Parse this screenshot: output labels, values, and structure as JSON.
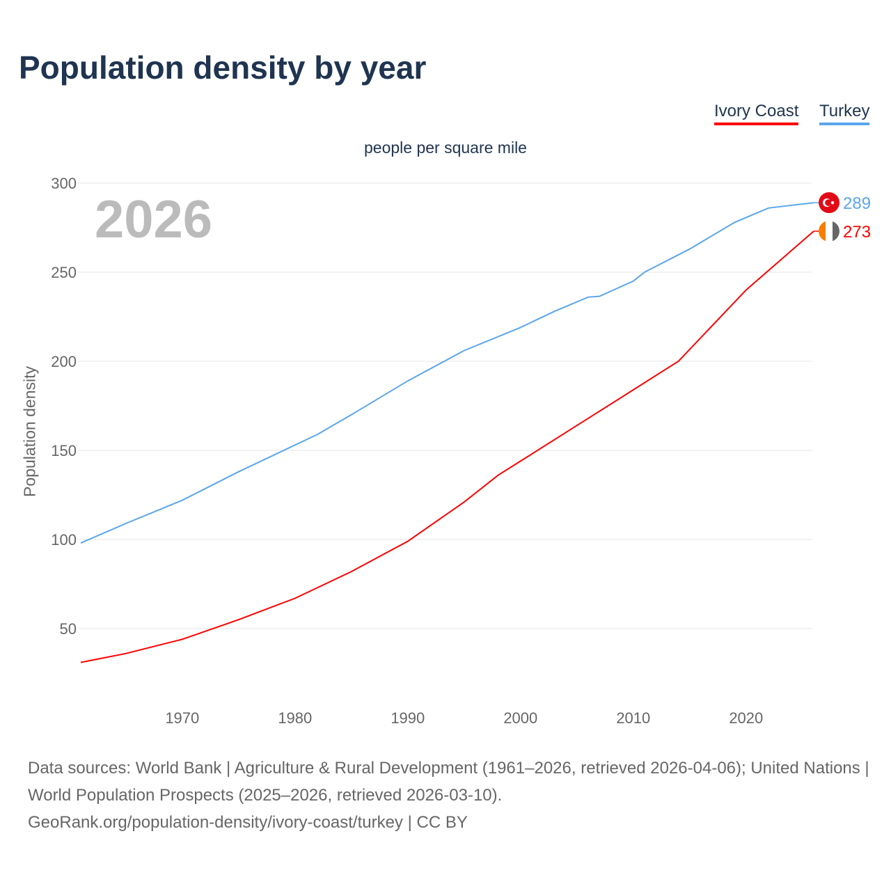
{
  "title": "Population density by year",
  "legend": [
    {
      "label": "Ivory Coast",
      "color": "#ff0000"
    },
    {
      "label": "Turkey",
      "color": "#5aa6ec"
    }
  ],
  "current_year": "2026",
  "source_lines": [
    "Data sources: World Bank | Agriculture & Rural Development (1961–2026, retrieved 2026-04-06); United Nations | World Population Prospects (2025–2026, retrieved 2026-03-10).",
    "GeoRank.org/population-density/ivory-coast/turkey | CC BY"
  ],
  "chart_data": {
    "type": "line",
    "title": "Population density by year",
    "subtitle": "people per square mile",
    "ylabel": "Population density",
    "xlabel": "",
    "xlim": [
      1961,
      2026
    ],
    "ylim": [
      30,
      300
    ],
    "yticks": [
      50,
      100,
      150,
      200,
      250,
      300
    ],
    "xticks": [
      1970,
      1980,
      1990,
      2000,
      2010,
      2020
    ],
    "grid": true,
    "legend_position": "top-right",
    "series": [
      {
        "name": "Turkey",
        "color": "#5aa6ec",
        "end_label": "289",
        "x": [
          1961,
          1965,
          1970,
          1975,
          1980,
          1982,
          1985,
          1990,
          1995,
          2000,
          2003,
          2006,
          2007,
          2010,
          2011,
          2015,
          2019,
          2022,
          2026
        ],
        "y": [
          98,
          109,
          122,
          138,
          153,
          159,
          170,
          189,
          206,
          219,
          228,
          236,
          236.5,
          245,
          250,
          263,
          278,
          286,
          289
        ]
      },
      {
        "name": "Ivory Coast",
        "color": "#ff0000",
        "end_label": "273",
        "x": [
          1961,
          1965,
          1970,
          1975,
          1980,
          1985,
          1990,
          1995,
          1998,
          2000,
          2005,
          2010,
          2013,
          2014,
          2020,
          2026
        ],
        "y": [
          31,
          36,
          44,
          55,
          67,
          82,
          99,
          121,
          136,
          144,
          164,
          184,
          196,
          200,
          240,
          273
        ]
      }
    ]
  }
}
